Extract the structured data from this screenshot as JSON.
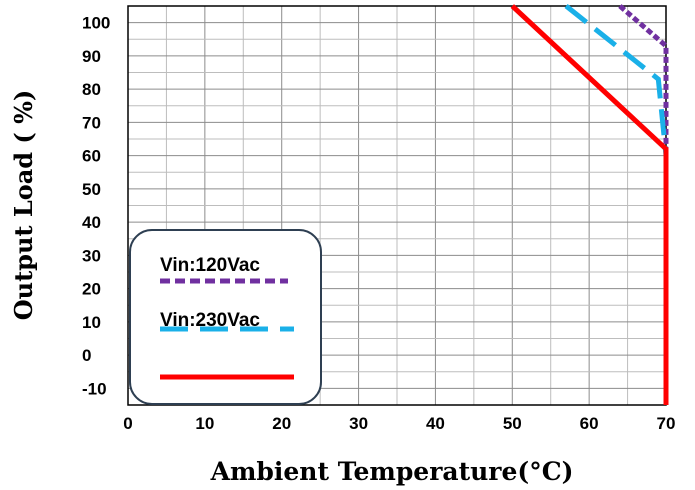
{
  "chart_data": {
    "type": "line",
    "title": "",
    "xlabel": "Ambient Temperature(°C)",
    "ylabel": "Output Load ( %)",
    "xlim": [
      0,
      70
    ],
    "ylim": [
      -15,
      105
    ],
    "x_ticks": [
      0,
      10,
      20,
      30,
      40,
      50,
      60,
      70
    ],
    "y_ticks": [
      -10,
      0,
      10,
      20,
      30,
      40,
      50,
      60,
      70,
      80,
      90,
      100
    ],
    "grid": true,
    "legend_position": "bottom-left",
    "series": [
      {
        "name": "Vin:120Vac",
        "color": "#7030a0",
        "style": "dotted",
        "x": [
          64,
          70,
          70,
          70
        ],
        "y": [
          105,
          93,
          60,
          -15
        ]
      },
      {
        "name": "Vin:230Vac",
        "color": "#1ab0e8",
        "style": "dashed",
        "x": [
          57,
          69,
          70,
          70
        ],
        "y": [
          105,
          83,
          60,
          -15
        ]
      },
      {
        "name": "",
        "color": "#ff0000",
        "style": "solid",
        "x": [
          50,
          70,
          70
        ],
        "y": [
          105,
          62,
          -15
        ]
      }
    ]
  }
}
